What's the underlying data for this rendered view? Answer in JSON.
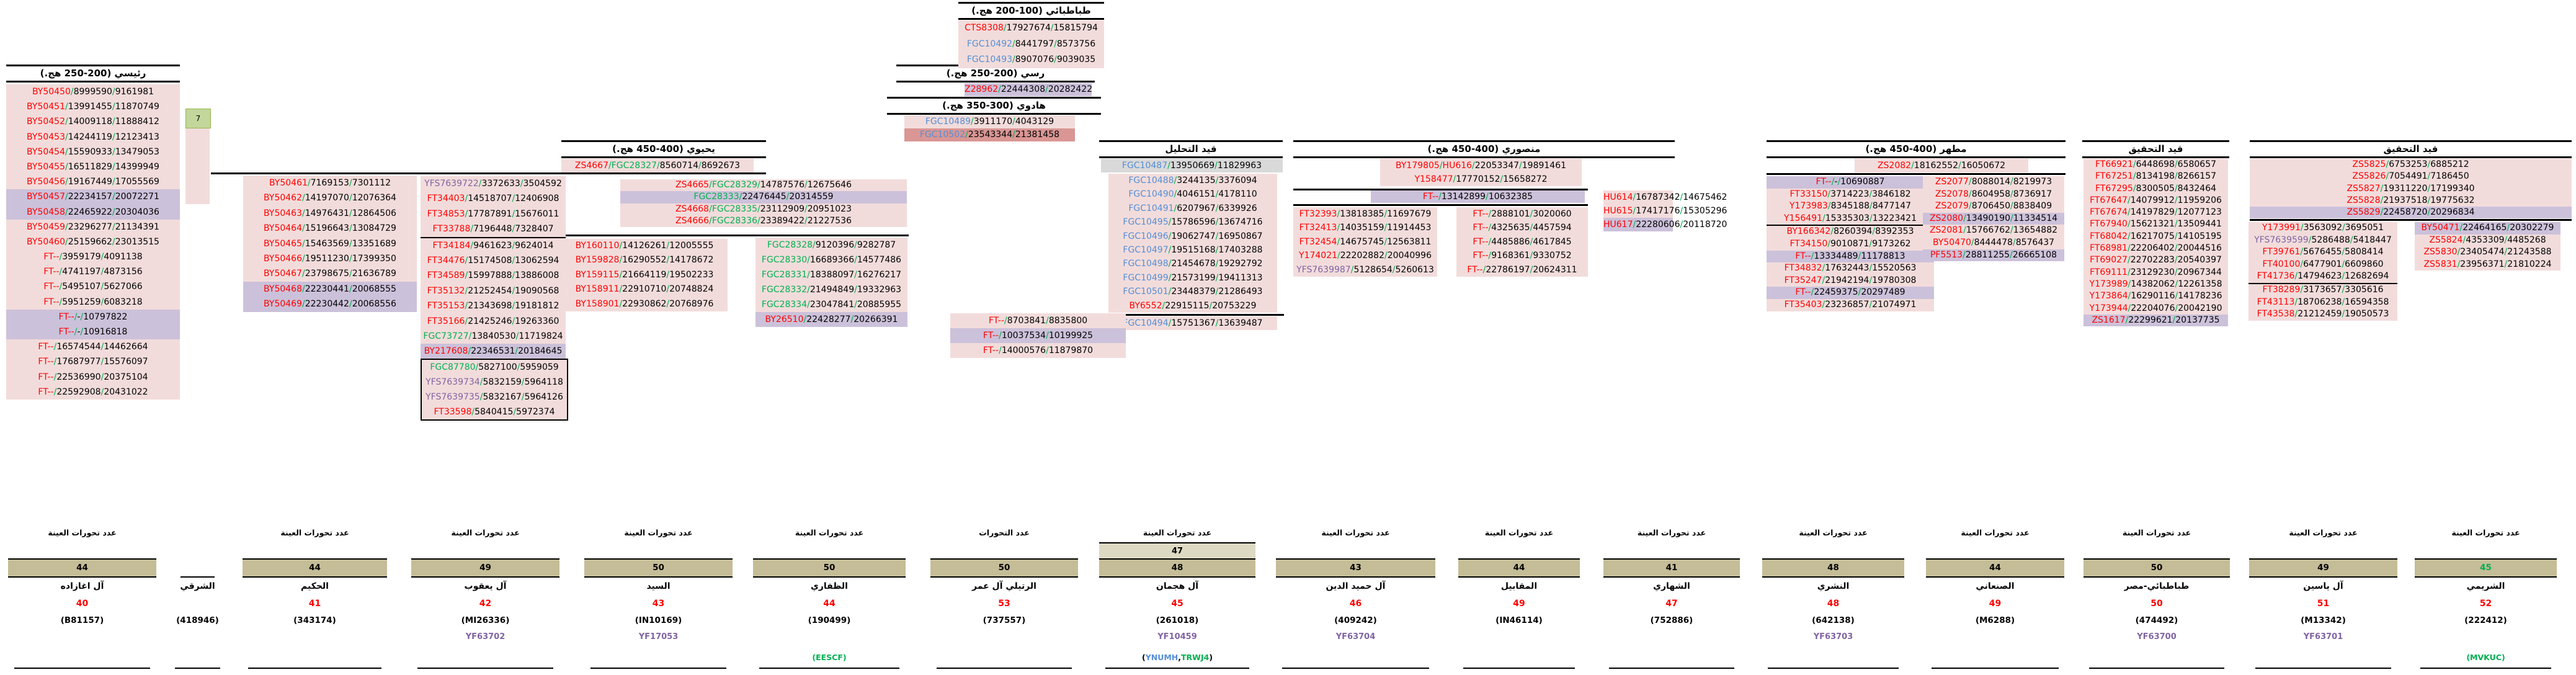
{
  "titles": {
    "raisi": "رئيسي (200-250 هج.)",
    "tabatabai": "طباطبائي (100-200 هج.)",
    "rassi": "رسي (200-250 هج.)",
    "hadawi": "هادوي (300-350 هج.)",
    "yahyawi": "يحيوي (400-450 هج.)",
    "tahlil": "قيد التحليل",
    "mansuri": "منصوري (400-450 هج.)",
    "mutahhar": "مطهر (400-450 هج.)",
    "tahqiq1": "قيد التحقيق",
    "tahqiq2": "قيد التحقيق"
  },
  "misc": {
    "green_box": "7"
  },
  "colors": {
    "red": "#ff0000",
    "blue": "#558ed5",
    "green": "#00b050",
    "purple": "#8064a2",
    "pink_bg": "#f2dcdb",
    "purple_bg": "#ccc1da",
    "salmon_bg": "#d99694",
    "gray_bg": "#d9d9d9",
    "khaki": "#c4bd97",
    "khaki_light": "#ddd9c3"
  },
  "blocks": {
    "raisi": [
      {
        "t": "BY50450/8999590/9161981",
        "c": [
          "r"
        ]
      },
      {
        "t": "BY50451/13991455/11870749",
        "c": [
          "r"
        ]
      },
      {
        "t": "BY50452/14009118/11888412",
        "c": [
          "r"
        ]
      },
      {
        "t": "BY50453/14244119/12123413",
        "c": [
          "r"
        ]
      },
      {
        "t": "BY50454/15590933/13479053",
        "c": [
          "r"
        ]
      },
      {
        "t": "BY50455/16511829/14399949",
        "c": [
          "r"
        ]
      },
      {
        "t": "BY50456/19167449/17055569",
        "c": [
          "r"
        ]
      },
      {
        "t": "BY50457/22234157/20072271",
        "c": [
          "r"
        ],
        "bg": "v"
      },
      {
        "t": "BY50458/22465922/20304036",
        "c": [
          "r"
        ],
        "bg": "v"
      },
      {
        "t": "BY50459/23296277/21134391",
        "c": [
          "r"
        ]
      },
      {
        "t": "BY50460/25159662/23013515",
        "c": [
          "r"
        ]
      },
      {
        "t": "FT--/3959179/4091138",
        "c": [
          "r"
        ]
      },
      {
        "t": "FT--/4741197/4873156",
        "c": [
          "r"
        ]
      },
      {
        "t": "FT--/5495107/5627066",
        "c": [
          "r"
        ]
      },
      {
        "t": "FT--/5951259/6083218",
        "c": [
          "r"
        ]
      },
      {
        "t": "FT--/-/10797822",
        "c": [
          "r"
        ],
        "bg": "v"
      },
      {
        "t": "FT--/-/10916818",
        "c": [
          "r"
        ],
        "bg": "v"
      },
      {
        "t": "FT--/16574544/14462664",
        "c": [
          "r"
        ]
      },
      {
        "t": "FT--/17687977/15576097",
        "c": [
          "r"
        ]
      },
      {
        "t": "FT--/22536990/20375104",
        "c": [
          "r"
        ]
      },
      {
        "t": "FT--/22592908/20431022",
        "c": [
          "r"
        ]
      }
    ],
    "by461": [
      {
        "t": "BY50461/7169153/7301112",
        "c": [
          "r"
        ]
      },
      {
        "t": "BY50462/14197070/12076364",
        "c": [
          "r"
        ]
      },
      {
        "t": "BY50463/14976431/12864506",
        "c": [
          "r"
        ]
      },
      {
        "t": "BY50464/15196643/13084729",
        "c": [
          "r"
        ]
      },
      {
        "t": "BY50465/15463569/13351689",
        "c": [
          "r"
        ]
      },
      {
        "t": "BY50466/19511230/17399350",
        "c": [
          "r"
        ]
      },
      {
        "t": "BY50467/23798675/21636789",
        "c": [
          "r"
        ]
      },
      {
        "t": "BY50468/22230441/20068555",
        "c": [
          "r"
        ],
        "bg": "v"
      },
      {
        "t": "BY50469/22230442/20068556",
        "c": [
          "r"
        ],
        "bg": "v"
      }
    ],
    "yfs": [
      {
        "t": "YFS7639722/3372633/3504592",
        "c": [
          "p"
        ]
      },
      {
        "t": "FT34403/14518707/12406908",
        "c": [
          "r"
        ]
      },
      {
        "t": "FT34853/17787891/15676011",
        "c": [
          "r"
        ]
      },
      {
        "t": "FT33788/7196448/7328407",
        "c": [
          "r"
        ],
        "div": true
      },
      {
        "t": "FT34184/9461623/9624014",
        "c": [
          "r"
        ]
      },
      {
        "t": "FT34476/15174508/13062594",
        "c": [
          "r"
        ]
      },
      {
        "t": "FT34589/15997888/13886008",
        "c": [
          "r"
        ]
      },
      {
        "t": "FT35132/21252454/19090568",
        "c": [
          "r"
        ]
      },
      {
        "t": "FT35153/21343698/19181812",
        "c": [
          "r"
        ]
      },
      {
        "t": "FT35166/21425246/19263360",
        "c": [
          "r"
        ]
      },
      {
        "t": "FGC73727/13840530/11719824",
        "c": [
          "g"
        ]
      },
      {
        "t": "BY217608/22346531/20184645",
        "c": [
          "r"
        ],
        "bg": "v"
      }
    ],
    "yfsbox": [
      {
        "t": "FGC87780/5827100/5959059",
        "c": [
          "g"
        ]
      },
      {
        "t": "YFS7639734/5832159/5964118",
        "c": [
          "p"
        ]
      },
      {
        "t": "YFS7639735/5832167/5964126",
        "c": [
          "p"
        ]
      },
      {
        "t": "FT33598/5840415/5972374",
        "c": [
          "r"
        ]
      }
    ],
    "tab": [
      {
        "t": "CTS8308/17927674/15815794",
        "c": [
          "r"
        ]
      },
      {
        "t": "FGC10492/8441797/8573756",
        "c": [
          "b"
        ]
      },
      {
        "t": "FGC10493/8907076/9039035",
        "c": [
          "b"
        ]
      }
    ],
    "rassi1": [
      {
        "t": "Z28962/22444308/20282422",
        "c": [
          "r"
        ],
        "bg": "v"
      }
    ],
    "hadawi2": [
      {
        "t": "FGC10489/3911170/4043129",
        "c": [
          "b"
        ]
      },
      {
        "t": "FGC10502/23543344/21381458",
        "c": [
          "b"
        ],
        "bg": "d"
      }
    ],
    "yahtop": [
      {
        "t": "ZS4667/FGC28327/8560714/8692673",
        "c": [
          "r",
          "g"
        ]
      }
    ],
    "yahsub4": [
      {
        "t": "ZS4665/FGC28329/14787576/12675646",
        "c": [
          "r",
          "g"
        ]
      },
      {
        "t": "FGC28333/22476445/20314559",
        "c": [
          "g"
        ],
        "bg": "v"
      },
      {
        "t": "ZS4668/FGC28335/23112909/20951023",
        "c": [
          "r",
          "g"
        ]
      },
      {
        "t": "ZS4666/FGC28336/23389422/21227536",
        "c": [
          "r",
          "g"
        ]
      }
    ],
    "yahleft": [
      {
        "t": "BY160110/14126261/12005555",
        "c": [
          "r"
        ]
      },
      {
        "t": "BY159828/16290552/14178672",
        "c": [
          "r"
        ]
      },
      {
        "t": "BY159115/21664119/19502233",
        "c": [
          "r"
        ]
      },
      {
        "t": "BY158911/22910710/20748824",
        "c": [
          "r"
        ]
      },
      {
        "t": "BY158901/22930862/20768976",
        "c": [
          "r"
        ]
      }
    ],
    "yahright": [
      {
        "t": "FGC28328/9120396/9282787",
        "c": [
          "g"
        ]
      },
      {
        "t": "FGC28330/16689366/14577486",
        "c": [
          "g"
        ]
      },
      {
        "t": "FGC28331/18388097/16276217",
        "c": [
          "g"
        ]
      },
      {
        "t": "FGC28332/21494849/19332963",
        "c": [
          "g"
        ]
      },
      {
        "t": "FGC28334/23047841/20885955",
        "c": [
          "g"
        ]
      },
      {
        "t": "BY26510/22428277/20266391",
        "c": [
          "r"
        ],
        "bg": "v"
      }
    ],
    "tahliltop": [
      {
        "t": "FGC10487/13950669/11829963",
        "c": [
          "b"
        ],
        "bg": "y"
      }
    ],
    "tahlilrows": [
      {
        "t": "FGC10488/3244135/3376094",
        "c": [
          "b"
        ]
      },
      {
        "t": "FGC10490/4046151/4178110",
        "c": [
          "b"
        ]
      },
      {
        "t": "FGC10491/6207967/6339926",
        "c": [
          "b"
        ]
      },
      {
        "t": "FGC10495/15786596/13674716",
        "c": [
          "b"
        ]
      },
      {
        "t": "FGC10496/19062747/16950867",
        "c": [
          "b"
        ]
      },
      {
        "t": "FGC10497/19515168/17403288",
        "c": [
          "b"
        ]
      },
      {
        "t": "FGC10498/21454678/19292792",
        "c": [
          "b"
        ]
      },
      {
        "t": "FGC10499/21573199/19411313",
        "c": [
          "b"
        ]
      },
      {
        "t": "FGC10501/23448379/21286493",
        "c": [
          "b"
        ]
      },
      {
        "t": "BY6552/22915115/20753229",
        "c": [
          "r"
        ]
      }
    ],
    "tahlilbot": [
      {
        "t": "FGC10494/15751367/13639487",
        "c": [
          "b"
        ]
      }
    ],
    "tahlilmini": [
      {
        "t": "FT--/8703841/8835800",
        "c": [
          "r"
        ]
      },
      {
        "t": "FT--/10037534/10199925",
        "c": [
          "r"
        ],
        "bg": "v"
      },
      {
        "t": "FT--/14000576/11879870",
        "c": [
          "r"
        ]
      }
    ],
    "mantop": [
      {
        "t": "BY179805/HU616/22053347/19891461",
        "c": [
          "r",
          "r"
        ]
      },
      {
        "t": "Y158477/17770152/15658272",
        "c": [
          "r"
        ]
      }
    ],
    "manpurple": [
      {
        "t": "FT--/13142899/10632385",
        "c": [
          "r"
        ],
        "bg": "v"
      }
    ],
    "manleft": [
      {
        "t": "FT32393/13818385/11697679",
        "c": [
          "r"
        ]
      },
      {
        "t": "FT32413/14035159/11914453",
        "c": [
          "r"
        ]
      },
      {
        "t": "FT32454/14675745/12563811",
        "c": [
          "r"
        ]
      },
      {
        "t": "Y174021/22202882/20040996",
        "c": [
          "r"
        ]
      },
      {
        "t": "YFS7639987/5128654/5260613",
        "c": [
          "p"
        ]
      }
    ],
    "manmid": [
      {
        "t": "FT--/2888101/3020060",
        "c": [
          "r"
        ]
      },
      {
        "t": "FT--/4325635/4457594",
        "c": [
          "r"
        ]
      },
      {
        "t": "FT--/4485886/4617845",
        "c": [
          "r"
        ]
      },
      {
        "t": "FT--/9168361/9330752",
        "c": [
          "r"
        ]
      },
      {
        "t": "FT--/22786197/20624311",
        "c": [
          "r"
        ]
      }
    ],
    "manhu": [
      {
        "t": "HU614/16787342/14675462",
        "c": [
          "r"
        ]
      },
      {
        "t": "HU615/17417176/15305296",
        "c": [
          "r"
        ]
      },
      {
        "t": "HU617/22280606/20118720",
        "c": [
          "r"
        ],
        "bg": "v"
      }
    ],
    "muttop": [
      {
        "t": "ZS2082/18162552/16050672",
        "c": [
          "r"
        ]
      }
    ],
    "mutleft": [
      {
        "t": "FT--/-/10690887",
        "c": [
          "r"
        ],
        "bg": "v"
      },
      {
        "t": "FT33150/3714223/3846182",
        "c": [
          "r"
        ]
      },
      {
        "t": "Y173983/8345188/8477147",
        "c": [
          "r"
        ]
      },
      {
        "t": "Y156491/15335303/13223421",
        "c": [
          "r"
        ],
        "div": true
      },
      {
        "t": "BY166342/8260394/8392353",
        "c": [
          "r"
        ]
      },
      {
        "t": "FT34150/9010871/9173262",
        "c": [
          "r"
        ]
      },
      {
        "t": "FT--/13334489/11178813",
        "c": [
          "r"
        ],
        "bg": "v"
      },
      {
        "t": "FT34832/17632443/15520563",
        "c": [
          "r"
        ]
      },
      {
        "t": "FT35247/21942194/19780308",
        "c": [
          "r"
        ]
      },
      {
        "t": "FT--/22459375/20297489",
        "c": [
          "r"
        ],
        "bg": "v"
      },
      {
        "t": "FT35403/23236857/21074971",
        "c": [
          "r"
        ]
      }
    ],
    "mutright": [
      {
        "t": "ZS2077/8088014/8219973",
        "c": [
          "r"
        ]
      },
      {
        "t": "ZS2078/8604958/8736917",
        "c": [
          "r"
        ]
      },
      {
        "t": "ZS2079/8706450/8838409",
        "c": [
          "r"
        ]
      },
      {
        "t": "ZS2080/13490190/11334514",
        "c": [
          "r"
        ],
        "bg": "v"
      },
      {
        "t": "ZS2081/15766762/13654882",
        "c": [
          "r"
        ]
      },
      {
        "t": "BY50470/8444478/8576437",
        "c": [
          "r"
        ]
      },
      {
        "t": "PF5513/28811255/26665108",
        "c": [
          "r"
        ],
        "bg": "v"
      }
    ],
    "tq1": [
      {
        "t": "FT66921/6448698/6580657",
        "c": [
          "r"
        ]
      },
      {
        "t": "FT67251/8134198/8266157",
        "c": [
          "r"
        ]
      },
      {
        "t": "FT67295/8300505/8432464",
        "c": [
          "r"
        ]
      },
      {
        "t": "FT67647/14079912/11959206",
        "c": [
          "r"
        ]
      },
      {
        "t": "FT67674/14197829/12077123",
        "c": [
          "r"
        ]
      },
      {
        "t": "FT67940/15621321/13509441",
        "c": [
          "r"
        ]
      },
      {
        "t": "FT68042/16217075/14105195",
        "c": [
          "r"
        ]
      },
      {
        "t": "FT68981/22206402/20044516",
        "c": [
          "r"
        ]
      },
      {
        "t": "FT69027/22702283/20540397",
        "c": [
          "r"
        ]
      },
      {
        "t": "FT69111/23129230/20967344",
        "c": [
          "r"
        ]
      },
      {
        "t": "Y173989/14382062/12261358",
        "c": [
          "r"
        ]
      },
      {
        "t": "Y173864/16290116/14178236",
        "c": [
          "r"
        ]
      },
      {
        "t": "Y173944/22204076/20042190",
        "c": [
          "r"
        ]
      },
      {
        "t": "ZS1617/22299621/20137735",
        "c": [
          "r"
        ],
        "bg": "v"
      }
    ],
    "tq2top": [
      {
        "t": "ZS5825/6753253/6885212",
        "c": [
          "r"
        ]
      },
      {
        "t": "ZS5826/7054491/7186450",
        "c": [
          "r"
        ]
      },
      {
        "t": "ZS5827/19311220/17199340",
        "c": [
          "r"
        ]
      },
      {
        "t": "ZS5828/21937518/19775632",
        "c": [
          "r"
        ]
      },
      {
        "t": "ZS5829/22458720/20296834",
        "c": [
          "r"
        ],
        "bg": "v"
      }
    ],
    "tq2left": [
      {
        "t": "Y173991/3563092/3695051",
        "c": [
          "r"
        ]
      },
      {
        "t": "YFS7639599/5286488/5418447",
        "c": [
          "p"
        ]
      },
      {
        "t": "FT39761/5676455/5808414",
        "c": [
          "r"
        ]
      },
      {
        "t": "FT40100/6477901/6609860",
        "c": [
          "r"
        ]
      },
      {
        "t": "FT41736/14794623/12682694",
        "c": [
          "r"
        ],
        "div": true
      },
      {
        "t": "FT38289/3173657/3305616",
        "c": [
          "r"
        ]
      },
      {
        "t": "FT43113/18706238/16594358",
        "c": [
          "r"
        ]
      },
      {
        "t": "FT43538/21212459/19050573",
        "c": [
          "r"
        ]
      }
    ],
    "tq2right": [
      {
        "t": "BY50471/22464165/20302279",
        "c": [
          "r"
        ],
        "bg": "v"
      },
      {
        "t": "ZS5824/4353309/4485268",
        "c": [
          "r"
        ]
      },
      {
        "t": "ZS5830/23405474/21243588",
        "c": [
          "r"
        ]
      },
      {
        "t": "ZS5831/23956371/21810224",
        "c": [
          "r"
        ]
      }
    ]
  },
  "bottom": {
    "header_default": "عدد تحورات العينة",
    "cols": [
      {
        "header": "عدد تحورات العينة",
        "num": "44",
        "name": "آل اغازاده",
        "red": "40",
        "kit": "(B81157)"
      },
      {
        "header": "",
        "name": "الشرقي",
        "kit": "(418946)",
        "toprule": true
      },
      {
        "header": "عدد تحورات العينة",
        "num": "44",
        "name": "الحكيم",
        "red": "41",
        "kit": "(343174)"
      },
      {
        "header": "عدد تحورات العينة",
        "num": "49",
        "name": "آل يعقوب",
        "red": "42",
        "kit": "(MI26336)",
        "yf": "YF63702"
      },
      {
        "header": "عدد تحورات العينة",
        "num": "50",
        "name": "السيد",
        "red": "43",
        "kit": "(IN10169)",
        "yf": "YF17053"
      },
      {
        "header": "عدد تحورات العينة",
        "num": "50",
        "name": "الظفاري",
        "red": "44",
        "kit": "(190499)",
        "code": [
          [
            "(EESCF)",
            "g"
          ]
        ]
      },
      {
        "header": "عدد التحورات",
        "num": "50",
        "name": "الرتيلي آل عمر",
        "red": "53",
        "kit": "(737557)"
      },
      {
        "header": "عدد تحورات العينة",
        "pre": "47",
        "num": "48",
        "name": "آل هجمان",
        "red": "45",
        "kit": "(261018)",
        "yf": "YF10459",
        "code": [
          [
            "(",
            "k"
          ],
          [
            "YNUMH",
            "b"
          ],
          [
            ",",
            "k"
          ],
          [
            "TRWJ4",
            "g"
          ],
          [
            ")",
            "k"
          ]
        ]
      },
      {
        "header": "عدد تحورات العينة",
        "num": "43",
        "name": "آل حميد الدين",
        "red": "46",
        "kit": "(409242)",
        "yf": "YF63704"
      },
      {
        "header": "عدد تحورات العينة",
        "num": "44",
        "name": "المقابيل",
        "red": "49",
        "kit": "(IN46114)"
      },
      {
        "header": "عدد تحورات العينة",
        "num": "41",
        "name": "الشهاري",
        "red": "47",
        "kit": "(752886)"
      },
      {
        "header": "عدد تحورات العينة",
        "num": "48",
        "name": "النشري",
        "red": "48",
        "kit": "(642138)",
        "yf": "YF63703"
      },
      {
        "header": "عدد تحورات العينة",
        "num": "44",
        "name": "الصنعاني",
        "red": "49",
        "kit": "(M6288)"
      },
      {
        "header": "عدد تحورات العينة",
        "num": "50",
        "name": "طباطبائي-مصر",
        "red": "50",
        "kit": "(474492)",
        "yf": "YF63700"
      },
      {
        "header": "عدد تحورات العينة",
        "num": "49",
        "name": "آل ياسين",
        "red": "51",
        "kit": "(M13342)",
        "yf": "YF63701"
      },
      {
        "header": "عدد تحورات العينة",
        "num": "45",
        "numc": "g",
        "name": "الشريمي",
        "red": "52",
        "kit": "(222412)",
        "code": [
          [
            "(MVKUC)",
            "g"
          ]
        ]
      }
    ]
  }
}
